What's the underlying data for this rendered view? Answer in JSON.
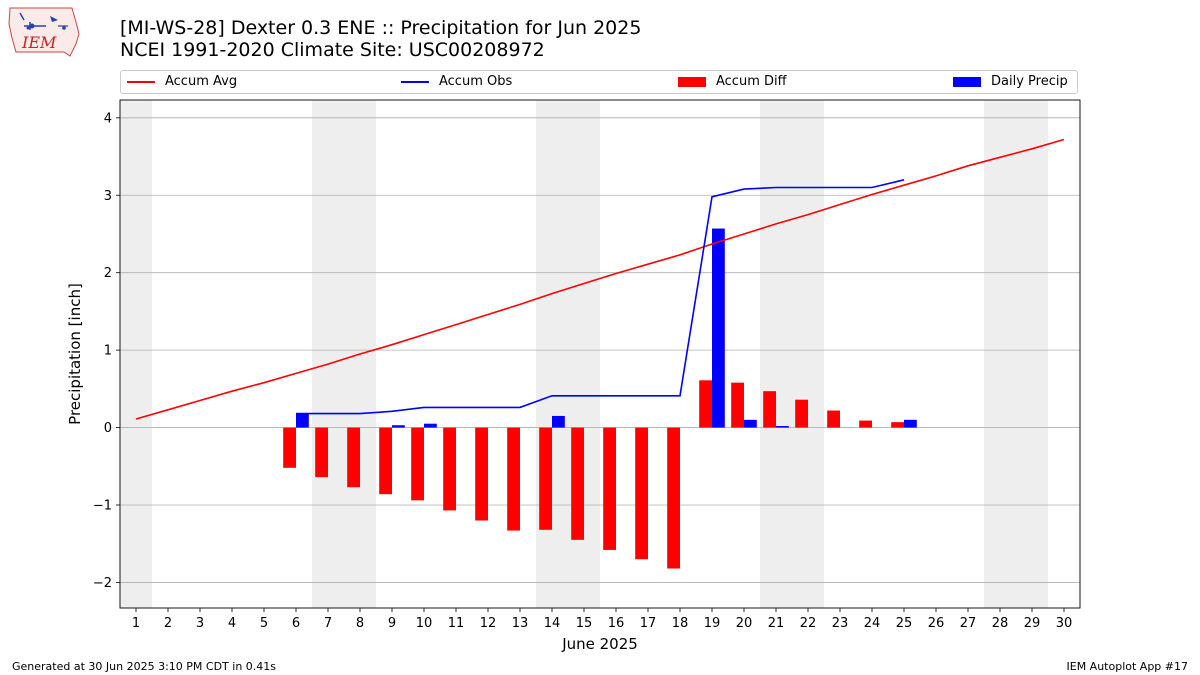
{
  "header": {
    "title_line1": "[MI-WS-28] Dexter 0.3 ENE :: Precipitation for Jun 2025",
    "title_line2": "NCEI 1991-2020 Climate Site: USC00208972",
    "logo_text": "IEM"
  },
  "footer": {
    "generated": "Generated at 30 Jun 2025 3:10 PM CDT in 0.41s",
    "app": "IEM Autoplot App #17"
  },
  "legend": {
    "accum_avg": "Accum Avg",
    "accum_obs": "Accum Obs",
    "accum_diff": "Accum Diff",
    "daily_precip": "Daily Precip"
  },
  "colors": {
    "accum_avg": "#ff0000",
    "accum_obs": "#0000ff",
    "accum_diff": "#ff0000",
    "daily_precip": "#0000ff",
    "weekend_shade": "#eeeeee",
    "grid": "#b0b0b0"
  },
  "chart_data": {
    "type": "bar",
    "xlabel": "June 2025",
    "ylabel": "Precipitation [inch]",
    "xlim": [
      0.5,
      30.5
    ],
    "ylim": [
      -2.33,
      4.23
    ],
    "yticks": [
      -2,
      -1,
      0,
      1,
      2,
      3,
      4
    ],
    "ytick_labels": [
      "−2",
      "−1",
      "0",
      "1",
      "2",
      "3",
      "4"
    ],
    "grid": "horizontal",
    "legend_position": "top",
    "weekend_days": [
      1,
      7,
      8,
      14,
      15,
      21,
      22,
      28,
      29
    ],
    "days": [
      1,
      2,
      3,
      4,
      5,
      6,
      7,
      8,
      9,
      10,
      11,
      12,
      13,
      14,
      15,
      16,
      17,
      18,
      19,
      20,
      21,
      22,
      23,
      24,
      25,
      26,
      27,
      28,
      29,
      30
    ],
    "series": [
      {
        "name": "Accum Avg",
        "kind": "line",
        "x": [
          1,
          2,
          3,
          4,
          5,
          6,
          7,
          8,
          9,
          10,
          11,
          12,
          13,
          14,
          15,
          16,
          17,
          18,
          19,
          20,
          21,
          22,
          23,
          24,
          25,
          26,
          27,
          28,
          29,
          30
        ],
        "values": [
          0.11,
          0.23,
          0.35,
          0.47,
          0.58,
          0.7,
          0.82,
          0.95,
          1.07,
          1.2,
          1.33,
          1.46,
          1.59,
          1.73,
          1.86,
          1.99,
          2.11,
          2.23,
          2.37,
          2.5,
          2.63,
          2.75,
          2.88,
          3.01,
          3.13,
          3.25,
          3.38,
          3.49,
          3.6,
          3.72
        ]
      },
      {
        "name": "Accum Obs",
        "kind": "line",
        "x": [
          6,
          7,
          8,
          9,
          10,
          11,
          12,
          13,
          14,
          15,
          16,
          17,
          18,
          19,
          20,
          21,
          22,
          23,
          24,
          25
        ],
        "values": [
          0.18,
          0.18,
          0.18,
          0.21,
          0.26,
          0.26,
          0.26,
          0.26,
          0.41,
          0.41,
          0.41,
          0.41,
          0.41,
          2.98,
          3.08,
          3.1,
          3.1,
          3.1,
          3.1,
          3.2
        ]
      },
      {
        "name": "Accum Diff",
        "kind": "bar",
        "x": [
          6,
          7,
          8,
          9,
          10,
          11,
          12,
          13,
          14,
          15,
          16,
          17,
          18,
          19,
          20,
          21,
          22,
          23,
          24,
          25
        ],
        "values": [
          -0.52,
          -0.64,
          -0.77,
          -0.86,
          -0.94,
          -1.07,
          -1.2,
          -1.33,
          -1.32,
          -1.45,
          -1.58,
          -1.7,
          -1.82,
          0.61,
          0.58,
          0.47,
          0.36,
          0.22,
          0.09,
          0.07
        ]
      },
      {
        "name": "Daily Precip",
        "kind": "bar",
        "x": [
          6,
          7,
          8,
          9,
          10,
          11,
          12,
          13,
          14,
          15,
          16,
          17,
          18,
          19,
          20,
          21,
          22,
          23,
          24,
          25
        ],
        "values": [
          0.18,
          0.0,
          0.0,
          0.03,
          0.05,
          0.0,
          0.0,
          0.0,
          0.15,
          0.0,
          0.0,
          0.0,
          0.0,
          2.57,
          0.1,
          0.02,
          0.0,
          0.0,
          0.0,
          0.1
        ]
      }
    ]
  }
}
